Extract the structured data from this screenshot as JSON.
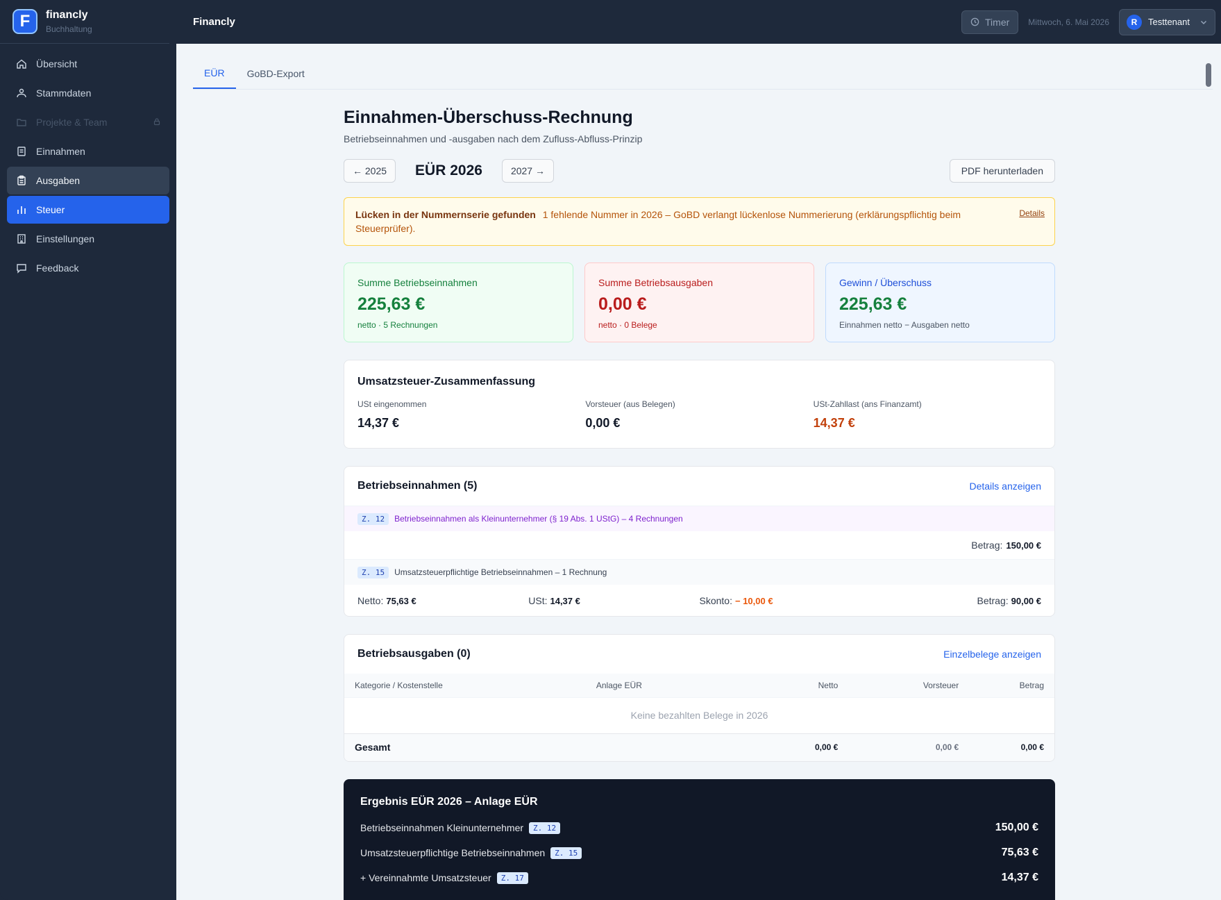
{
  "brand": {
    "name": "financly",
    "subtitle": "Buchhaltung",
    "logo_letter": "F"
  },
  "sidebar": {
    "items": [
      {
        "label": "Übersicht",
        "icon": "home-icon",
        "state": "normal"
      },
      {
        "label": "Stammdaten",
        "icon": "users-icon",
        "state": "normal"
      },
      {
        "label": "Projekte & Team",
        "icon": "folder-icon",
        "state": "disabled"
      },
      {
        "label": "Einnahmen",
        "icon": "receipt-icon",
        "state": "normal"
      },
      {
        "label": "Ausgaben",
        "icon": "clipboard-icon",
        "state": "hover"
      },
      {
        "label": "Steuer",
        "icon": "bar-chart-icon",
        "state": "active"
      },
      {
        "label": "Einstellungen",
        "icon": "building-icon",
        "state": "normal"
      },
      {
        "label": "Feedback",
        "icon": "message-icon",
        "state": "normal"
      }
    ]
  },
  "topbar": {
    "title": "Financly",
    "timer_label": "Timer",
    "date": "Mittwoch, 6. Mai 2026",
    "tenant_initial": "R",
    "tenant_name": "Testtenant"
  },
  "tabs": [
    {
      "label": "EÜR",
      "active": true
    },
    {
      "label": "GoBD-Export",
      "active": false
    }
  ],
  "page": {
    "title": "Einnahmen-Überschuss-Rechnung",
    "subtitle": "Betriebseinnahmen und -ausgaben nach dem Zufluss-Abfluss-Prinzip",
    "prev_year": "← 2025",
    "current_year": "EÜR 2026",
    "next_year": "2027 →",
    "pdf_button": "PDF herunterladen"
  },
  "alert": {
    "title": "Lücken in der Nummernserie gefunden",
    "text": "1 fehlende Nummer in 2026 – GoBD verlangt lückenlose Nummerierung (erklärungspflichtig beim Steuerprüfer).",
    "link": "Details"
  },
  "stats": {
    "income": {
      "label": "Summe Betriebseinnahmen",
      "value": "225,63 €",
      "note": "netto · 5 Rechnungen"
    },
    "expenses": {
      "label": "Summe Betriebsausgaben",
      "value": "0,00 €",
      "note": "netto · 0 Belege"
    },
    "profit": {
      "label": "Gewinn / Überschuss",
      "value": "225,63 €",
      "note": "Einnahmen netto − Ausgaben netto"
    }
  },
  "vat": {
    "title": "Umsatzsteuer-Zusammenfassung",
    "collected_label": "USt eingenommen",
    "collected_value": "14,37 €",
    "input_label": "Vorsteuer (aus Belegen)",
    "input_value": "0,00 €",
    "payable_label": "USt-Zahllast (ans Finanzamt)",
    "payable_value": "14,37 €"
  },
  "income_section": {
    "title": "Betriebseinnahmen (5)",
    "link": "Details anzeigen",
    "row1": {
      "badge": "Z. 12",
      "text": "Betriebseinnahmen als Kleinunternehmer (§ 19 Abs. 1 UStG) – 4 Rechnungen",
      "amount_label": "Betrag:",
      "amount": "150,00 €"
    },
    "row2": {
      "badge": "Z. 15",
      "text": "Umsatzsteuerpflichtige Betriebseinnahmen – 1 Rechnung",
      "netto_label": "Netto:",
      "netto": "75,63 €",
      "ust_label": "USt:",
      "ust": "14,37 €",
      "skonto_label": "Skonto:",
      "skonto": "− 10,00 €",
      "amount_label": "Betrag:",
      "amount": "90,00 €"
    }
  },
  "expense_section": {
    "title": "Betriebsausgaben (0)",
    "link": "Einzelbelege anzeigen",
    "columns": [
      "Kategorie / Kostenstelle",
      "Anlage EÜR",
      "Netto",
      "Vorsteuer",
      "Betrag"
    ],
    "empty": "Keine bezahlten Belege in 2026",
    "total_label": "Gesamt",
    "total_netto": "0,00 €",
    "total_vorsteuer": "0,00 €",
    "total_betrag": "0,00 €"
  },
  "result": {
    "title": "Ergebnis EÜR 2026 – Anlage EÜR",
    "rows": [
      {
        "label": "Betriebseinnahmen Kleinunternehmer",
        "badge": "Z. 12",
        "amount": "150,00 €"
      },
      {
        "label": "Umsatzsteuerpflichtige Betriebseinnahmen",
        "badge": "Z. 15",
        "amount": "75,63 €"
      },
      {
        "label": "+ Vereinnahmte Umsatzsteuer",
        "badge": "Z. 17",
        "amount": "14,37 €"
      }
    ]
  }
}
